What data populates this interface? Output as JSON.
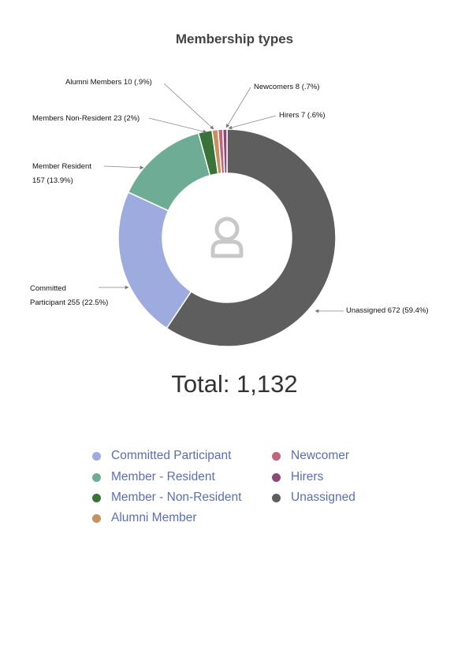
{
  "chart_data": {
    "type": "pie",
    "title": "Membership types",
    "total_label": "Total: 1,132",
    "center_icon": "user-icon",
    "slices": [
      {
        "name": "Unassigned",
        "value": 672,
        "percent": "59.4%",
        "color": "#5e5e5e",
        "callout_lines": [
          "Unassigned 672 (59.4%)"
        ]
      },
      {
        "name": "Committed Participant",
        "value": 255,
        "percent": "22.5%",
        "color": "#9dabdf",
        "callout_lines": [
          "Committed",
          "Participant 255 (22.5%)"
        ]
      },
      {
        "name": "Member - Resident",
        "value": 157,
        "percent": "13.9%",
        "color": "#6fac96",
        "callout_lines": [
          "Member Resident",
          "157 (13.9%)"
        ]
      },
      {
        "name": "Member - Non-Resident",
        "value": 23,
        "percent": "2%",
        "color": "#3a7338",
        "callout_lines": [
          "Members Non-Resident 23 (2%)"
        ]
      },
      {
        "name": "Alumni Member",
        "value": 10,
        "percent": ".9%",
        "color": "#c8905e",
        "callout_lines": [
          "Alumni Members 10 (.9%)"
        ]
      },
      {
        "name": "Newcomer",
        "value": 8,
        "percent": ".7%",
        "color": "#c2657b",
        "callout_lines": [
          "Newcomers 8 (.7%)"
        ]
      },
      {
        "name": "Hirers",
        "value": 7,
        "percent": ".6%",
        "color": "#8a4a78",
        "callout_lines": [
          "Hirers 7 (.6%)"
        ]
      }
    ],
    "legend": [
      {
        "label": "Committed Participant",
        "color": "#9dabdf"
      },
      {
        "label": "Member - Resident",
        "color": "#6fac96"
      },
      {
        "label": "Member - Non-Resident",
        "color": "#3a7338"
      },
      {
        "label": "Alumni Member",
        "color": "#c8905e"
      },
      {
        "label": "Newcomer",
        "color": "#c2657b"
      },
      {
        "label": "Hirers",
        "color": "#8a4a78"
      },
      {
        "label": "Unassigned",
        "color": "#5e5e5e"
      }
    ]
  }
}
